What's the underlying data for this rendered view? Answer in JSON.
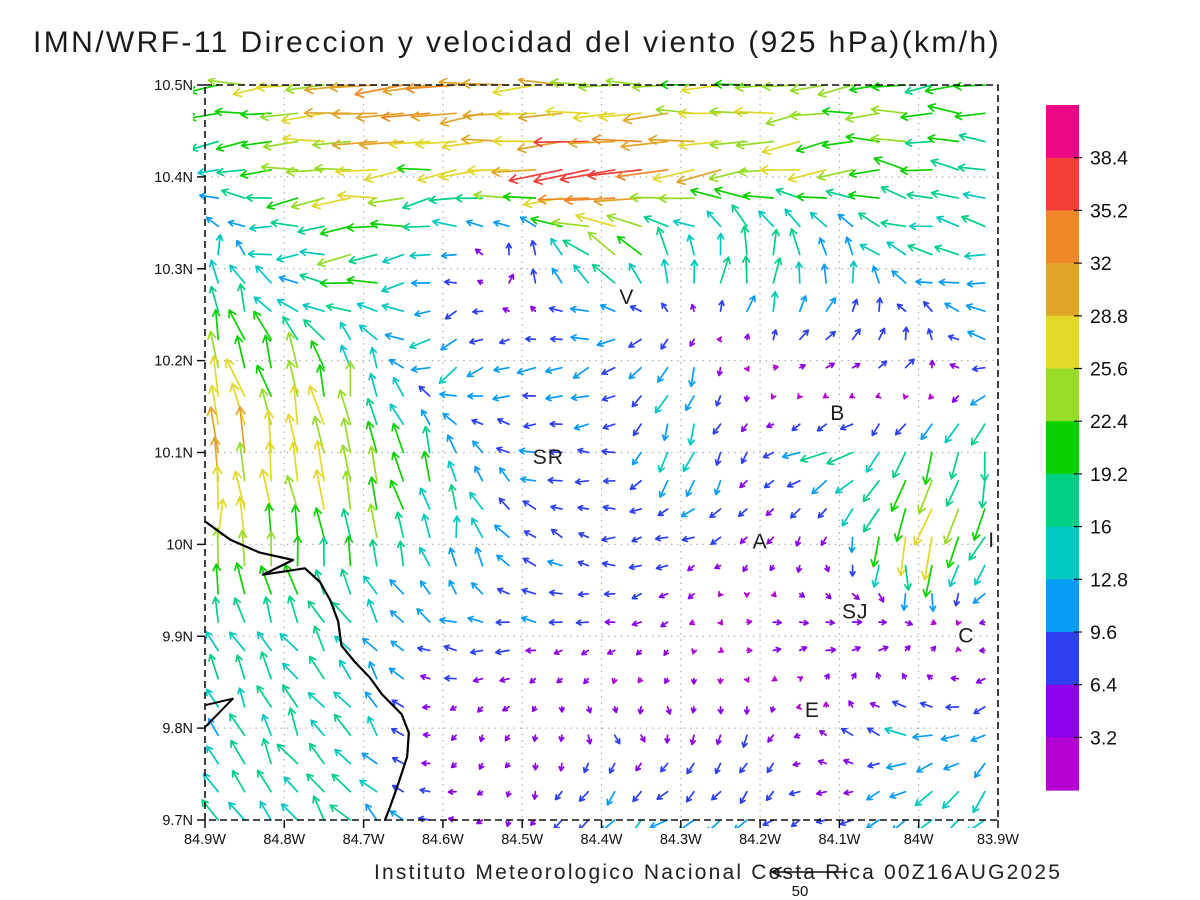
{
  "header": {
    "title": "IMN/WRF-11 Direccion y velocidad del viento (925 hPa)(km/h)"
  },
  "footer": {
    "caption": "Instituto Meteorologico Nacional Costa Rica 00Z16AUG2025",
    "ref_label": "50"
  },
  "chart_data": {
    "type": "vector_field",
    "title": "IMN/WRF-11 Direccion y velocidad del viento (925 hPa)(km/h)",
    "model": "IMN/WRF-11",
    "variable": "Direccion y velocidad del viento",
    "pressure_level": "925 hPa",
    "units": "km/h",
    "valid_time": "00Z16AUG2025",
    "source_caption": "Instituto Meteorologico Nacional Costa Rica 00Z16AUG2025",
    "reference_vector_kmh": 50,
    "x_axis": {
      "ticks": [
        "84.9W",
        "84.8W",
        "84.7W",
        "84.6W",
        "84.5W",
        "84.4W",
        "84.3W",
        "84.2W",
        "84.1W",
        "84W",
        "83.9W"
      ],
      "lon_w": [
        84.9,
        84.8,
        84.7,
        84.6,
        84.5,
        84.4,
        84.3,
        84.2,
        84.1,
        84.0,
        83.9
      ]
    },
    "y_axis": {
      "ticks": [
        "10.5N",
        "10.4N",
        "10.3N",
        "10.2N",
        "10.1N",
        "10N",
        "9.9N",
        "9.8N",
        "9.7N"
      ],
      "lat_n": [
        10.5,
        10.4,
        10.3,
        10.2,
        10.1,
        10.0,
        9.9,
        9.8,
        9.7
      ]
    },
    "grid_on": true,
    "colorbar": {
      "labels_top_to_bottom": [
        "38.4",
        "35.2",
        "32",
        "28.8",
        "25.6",
        "22.4",
        "19.2",
        "16",
        "12.8",
        "9.6",
        "6.4",
        "3.2"
      ],
      "levels_kmh": [
        3.2,
        6.4,
        9.6,
        12.8,
        16,
        19.2,
        22.4,
        25.6,
        28.8,
        32,
        35.2,
        38.4
      ],
      "colors_low_to_high": [
        "#b400d2",
        "#8a00e8",
        "#2c40f0",
        "#089cf8",
        "#00c8c0",
        "#00d084",
        "#0ad000",
        "#96dc28",
        "#e2d829",
        "#e0a428",
        "#f08828",
        "#f43c38",
        "#ec0884"
      ]
    },
    "wind_grid": {
      "comment": "u,v wind components (km/h) sampled at 0.1 deg; rows = lats_n top to bottom, cols = lons_w west to east",
      "lons_w": [
        84.9,
        84.8,
        84.7,
        84.6,
        84.5,
        84.4,
        84.3,
        84.2,
        84.1,
        84.0,
        83.9
      ],
      "lats_n": [
        10.5,
        10.4,
        10.3,
        10.2,
        10.1,
        10.0,
        9.9,
        9.8,
        9.7
      ],
      "uv_kmh": [
        [
          [
            -22,
            0
          ],
          [
            -25,
            -2
          ],
          [
            -31,
            -3
          ],
          [
            -33,
            -3
          ],
          [
            -28,
            -2
          ],
          [
            -26,
            -1
          ],
          [
            -25,
            -1
          ],
          [
            -23,
            -2
          ],
          [
            -22,
            -3
          ],
          [
            -21,
            -1
          ],
          [
            -20,
            0
          ]
        ],
        [
          [
            -13,
            0
          ],
          [
            -20,
            -2
          ],
          [
            -25,
            -3
          ],
          [
            -22,
            -2
          ],
          [
            -30,
            -3
          ],
          [
            -39,
            -4
          ],
          [
            -31,
            -4
          ],
          [
            -26,
            -3
          ],
          [
            -23,
            -3
          ],
          [
            -20,
            4
          ],
          [
            -17,
            3
          ]
        ],
        [
          [
            2,
            20
          ],
          [
            -14,
            2
          ],
          [
            -22,
            -3
          ],
          [
            -9,
            -2
          ],
          [
            6,
            10
          ],
          [
            -16,
            12
          ],
          [
            -2,
            18
          ],
          [
            3,
            21
          ],
          [
            1,
            16
          ],
          [
            -14,
            3
          ],
          [
            -15,
            0
          ]
        ],
        [
          [
            -7,
            22
          ],
          [
            -9,
            20
          ],
          [
            -4,
            17
          ],
          [
            -14,
            -9
          ],
          [
            -10,
            -4
          ],
          [
            -10,
            -6
          ],
          [
            -5,
            -13
          ],
          [
            3,
            1
          ],
          [
            7,
            3
          ],
          [
            4,
            9
          ],
          [
            -13,
            1
          ]
        ],
        [
          [
            -2,
            30
          ],
          [
            -7,
            28
          ],
          [
            -4,
            24
          ],
          [
            -2,
            17
          ],
          [
            -9,
            3
          ],
          [
            -8,
            1
          ],
          [
            -5,
            -14
          ],
          [
            -5,
            -4
          ],
          [
            -16,
            -6
          ],
          [
            -8,
            -18
          ],
          [
            -4,
            -20
          ]
        ],
        [
          [
            -1,
            27
          ],
          [
            -2,
            24
          ],
          [
            -6,
            20
          ],
          [
            -2,
            16
          ],
          [
            -8,
            7
          ],
          [
            -8,
            0
          ],
          [
            -7,
            -2
          ],
          [
            -4,
            -5
          ],
          [
            -1,
            -7
          ],
          [
            -6,
            -28
          ],
          [
            -10,
            -16
          ]
        ],
        [
          [
            -6,
            15
          ],
          [
            -8,
            14
          ],
          [
            -8,
            13
          ],
          [
            -10,
            2
          ],
          [
            -9,
            0
          ],
          [
            -6,
            -2
          ],
          [
            -3,
            -2
          ],
          [
            6,
            2
          ],
          [
            8,
            2
          ],
          [
            6,
            4
          ],
          [
            -4,
            1
          ]
        ],
        [
          [
            -7,
            13
          ],
          [
            -8,
            14
          ],
          [
            -9,
            13
          ],
          [
            -3,
            -3
          ],
          [
            -1,
            -4
          ],
          [
            3,
            -5
          ],
          [
            1,
            -5
          ],
          [
            -3,
            -7
          ],
          [
            -4,
            6
          ],
          [
            -14,
            2
          ],
          [
            -7,
            -7
          ]
        ],
        [
          [
            -8,
            12
          ],
          [
            -9,
            13
          ],
          [
            -10,
            12
          ],
          [
            -6,
            1
          ],
          [
            -1,
            -4
          ],
          [
            -8,
            -8
          ],
          [
            -10,
            -8
          ],
          [
            -7,
            -6
          ],
          [
            -6,
            -3
          ],
          [
            -9,
            -10
          ],
          [
            -11,
            -13
          ]
        ]
      ]
    },
    "stations": [
      {
        "label": "V",
        "lon_w": 84.368,
        "lat_n": 10.269
      },
      {
        "label": "B",
        "lon_w": 84.102,
        "lat_n": 10.143
      },
      {
        "label": "SR",
        "lon_w": 84.467,
        "lat_n": 10.095
      },
      {
        "label": "A",
        "lon_w": 84.2,
        "lat_n": 10.003
      },
      {
        "label": "I",
        "lon_w": 83.908,
        "lat_n": 10.005
      },
      {
        "label": "SJ",
        "lon_w": 84.08,
        "lat_n": 9.927
      },
      {
        "label": "C",
        "lon_w": 83.94,
        "lat_n": 9.901
      },
      {
        "label": "E",
        "lon_w": 84.134,
        "lat_n": 9.82
      }
    ],
    "coastline_lonlat": [
      [
        84.9,
        10.025
      ],
      [
        84.868,
        10.005
      ],
      [
        84.831,
        9.991
      ],
      [
        84.789,
        9.983
      ],
      [
        84.827,
        9.967
      ],
      [
        84.774,
        9.974
      ],
      [
        84.755,
        9.959
      ],
      [
        84.742,
        9.939
      ],
      [
        84.732,
        9.916
      ],
      [
        84.728,
        9.89
      ],
      [
        84.711,
        9.872
      ],
      [
        84.692,
        9.855
      ],
      [
        84.677,
        9.837
      ],
      [
        84.652,
        9.815
      ],
      [
        84.643,
        9.795
      ],
      [
        84.645,
        9.769
      ],
      [
        84.658,
        9.735
      ],
      [
        84.668,
        9.711
      ],
      [
        84.673,
        9.7
      ]
    ],
    "coast_spike_lonlat": [
      [
        84.9,
        9.825
      ],
      [
        84.865,
        9.832
      ],
      [
        84.9,
        9.801
      ]
    ]
  }
}
